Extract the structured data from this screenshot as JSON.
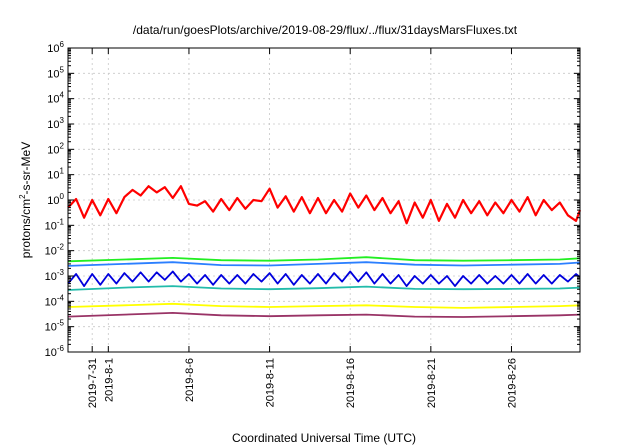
{
  "chart_data": {
    "type": "line",
    "title": "/data/run/goesPlots/archive/2019-08-29/flux/../flux/31daysMarsFluxes.txt",
    "xlabel": "Coordinated Universal Time (UTC)",
    "ylabel": {
      "main": "protons/cm",
      "sup": "2",
      "rest": "-s-sr-MeV"
    },
    "y_scale": "log",
    "ylim": [
      1e-06,
      1000000.0
    ],
    "y_ticks": [
      {
        "exp": "-6"
      },
      {
        "exp": "-5"
      },
      {
        "exp": "-4"
      },
      {
        "exp": "-3"
      },
      {
        "exp": "-2"
      },
      {
        "exp": "-1"
      },
      {
        "exp": "0"
      },
      {
        "exp": "1"
      },
      {
        "exp": "2"
      },
      {
        "exp": "3"
      },
      {
        "exp": "4"
      },
      {
        "exp": "5"
      },
      {
        "exp": "6"
      }
    ],
    "y_tick_base": "10",
    "xlim": [
      "2019-07-29T12:00",
      "2019-08-30T06:00"
    ],
    "x_ticks": [
      {
        "date": "2019-07-31",
        "label": "2019-7-31"
      },
      {
        "date": "2019-08-01",
        "label": "2019-8-1"
      },
      {
        "date": "2019-08-06",
        "label": "2019-8-6"
      },
      {
        "date": "2019-08-11",
        "label": "2019-8-11"
      },
      {
        "date": "2019-08-16",
        "label": "2019-8-16"
      },
      {
        "date": "2019-08-21",
        "label": "2019-8-21"
      },
      {
        "date": "2019-08-26",
        "label": "2019-8-26"
      }
    ],
    "grid": true,
    "series": [
      {
        "color": "#ff0000",
        "x": [
          "2019-07-29T12:00",
          "2019-07-30T00:00",
          "2019-07-30T12:00",
          "2019-07-31T00:00",
          "2019-07-31T12:00",
          "2019-08-01T00:00",
          "2019-08-01T12:00",
          "2019-08-02T00:00",
          "2019-08-02T12:00",
          "2019-08-03T00:00",
          "2019-08-03T12:00",
          "2019-08-04T00:00",
          "2019-08-04T12:00",
          "2019-08-05T00:00",
          "2019-08-05T12:00",
          "2019-08-06T00:00",
          "2019-08-06T12:00",
          "2019-08-07T00:00",
          "2019-08-07T12:00",
          "2019-08-08T00:00",
          "2019-08-08T12:00",
          "2019-08-09T00:00",
          "2019-08-09T12:00",
          "2019-08-10T00:00",
          "2019-08-10T12:00",
          "2019-08-11T00:00",
          "2019-08-11T12:00",
          "2019-08-12T00:00",
          "2019-08-12T12:00",
          "2019-08-13T00:00",
          "2019-08-13T12:00",
          "2019-08-14T00:00",
          "2019-08-14T12:00",
          "2019-08-15T00:00",
          "2019-08-15T12:00",
          "2019-08-16T00:00",
          "2019-08-16T12:00",
          "2019-08-17T00:00",
          "2019-08-17T12:00",
          "2019-08-18T00:00",
          "2019-08-18T12:00",
          "2019-08-19T00:00",
          "2019-08-19T12:00",
          "2019-08-20T00:00",
          "2019-08-20T12:00",
          "2019-08-21T00:00",
          "2019-08-21T12:00",
          "2019-08-22T00:00",
          "2019-08-22T12:00",
          "2019-08-23T00:00",
          "2019-08-23T12:00",
          "2019-08-24T00:00",
          "2019-08-24T12:00",
          "2019-08-25T00:00",
          "2019-08-25T12:00",
          "2019-08-26T00:00",
          "2019-08-26T12:00",
          "2019-08-27T00:00",
          "2019-08-27T12:00",
          "2019-08-28T00:00",
          "2019-08-28T12:00",
          "2019-08-29T00:00",
          "2019-08-29T12:00",
          "2019-08-30T00:00",
          "2019-08-30T06:00"
        ],
        "y": [
          0.5,
          1.1,
          0.2,
          1.0,
          0.25,
          1.1,
          0.3,
          1.3,
          2.5,
          1.5,
          3.5,
          2.0,
          3.2,
          1.2,
          3.5,
          0.7,
          0.6,
          0.9,
          0.35,
          1.1,
          0.4,
          1.2,
          0.45,
          1.0,
          0.9,
          2.8,
          0.5,
          1.4,
          0.35,
          1.3,
          0.3,
          1.2,
          0.3,
          1.0,
          0.35,
          1.8,
          0.5,
          1.5,
          0.4,
          1.2,
          0.3,
          0.9,
          0.12,
          0.8,
          0.2,
          1.0,
          0.15,
          0.7,
          0.2,
          1.0,
          0.3,
          0.9,
          0.25,
          0.8,
          0.3,
          1.0,
          0.35,
          1.3,
          0.25,
          1.0,
          0.4,
          0.8,
          0.25,
          0.15,
          0.4
        ]
      },
      {
        "color": "#22ee22",
        "x": [
          "2019-07-29T12:00",
          "2019-08-02T00:00",
          "2019-08-05T00:00",
          "2019-08-08T00:00",
          "2019-08-11T00:00",
          "2019-08-14T00:00",
          "2019-08-17T00:00",
          "2019-08-20T00:00",
          "2019-08-23T00:00",
          "2019-08-26T00:00",
          "2019-08-29T00:00",
          "2019-08-30T06:00"
        ],
        "y": [
          0.0038,
          0.0045,
          0.0052,
          0.0042,
          0.004,
          0.0045,
          0.0055,
          0.0042,
          0.004,
          0.0042,
          0.0045,
          0.005
        ]
      },
      {
        "color": "#2b7fff",
        "x": [
          "2019-07-29T12:00",
          "2019-08-02T00:00",
          "2019-08-05T00:00",
          "2019-08-08T00:00",
          "2019-08-11T00:00",
          "2019-08-14T00:00",
          "2019-08-17T00:00",
          "2019-08-20T00:00",
          "2019-08-23T00:00",
          "2019-08-26T00:00",
          "2019-08-29T00:00",
          "2019-08-30T06:00"
        ],
        "y": [
          0.0025,
          0.003,
          0.0035,
          0.0027,
          0.0026,
          0.003,
          0.0035,
          0.0028,
          0.0026,
          0.0028,
          0.003,
          0.0034
        ]
      },
      {
        "color": "#0000dd",
        "x": [
          "2019-07-29T12:00",
          "2019-07-30T00:00",
          "2019-07-30T12:00",
          "2019-07-31T00:00",
          "2019-07-31T12:00",
          "2019-08-01T00:00",
          "2019-08-01T12:00",
          "2019-08-02T00:00",
          "2019-08-02T12:00",
          "2019-08-03T00:00",
          "2019-08-03T12:00",
          "2019-08-04T00:00",
          "2019-08-04T12:00",
          "2019-08-05T00:00",
          "2019-08-05T12:00",
          "2019-08-06T00:00",
          "2019-08-06T12:00",
          "2019-08-07T00:00",
          "2019-08-07T12:00",
          "2019-08-08T00:00",
          "2019-08-08T12:00",
          "2019-08-09T00:00",
          "2019-08-09T12:00",
          "2019-08-10T00:00",
          "2019-08-10T12:00",
          "2019-08-11T00:00",
          "2019-08-11T12:00",
          "2019-08-12T00:00",
          "2019-08-12T12:00",
          "2019-08-13T00:00",
          "2019-08-13T12:00",
          "2019-08-14T00:00",
          "2019-08-14T12:00",
          "2019-08-15T00:00",
          "2019-08-15T12:00",
          "2019-08-16T00:00",
          "2019-08-16T12:00",
          "2019-08-17T00:00",
          "2019-08-17T12:00",
          "2019-08-18T00:00",
          "2019-08-18T12:00",
          "2019-08-19T00:00",
          "2019-08-19T12:00",
          "2019-08-20T00:00",
          "2019-08-20T12:00",
          "2019-08-21T00:00",
          "2019-08-21T12:00",
          "2019-08-22T00:00",
          "2019-08-22T12:00",
          "2019-08-23T00:00",
          "2019-08-23T12:00",
          "2019-08-24T00:00",
          "2019-08-24T12:00",
          "2019-08-25T00:00",
          "2019-08-25T12:00",
          "2019-08-26T00:00",
          "2019-08-26T12:00",
          "2019-08-27T00:00",
          "2019-08-27T12:00",
          "2019-08-28T00:00",
          "2019-08-28T12:00",
          "2019-08-29T00:00",
          "2019-08-29T12:00",
          "2019-08-30T00:00",
          "2019-08-30T06:00"
        ],
        "y": [
          0.0005,
          0.0012,
          0.0004,
          0.0012,
          0.00045,
          0.0012,
          0.0005,
          0.0013,
          0.0006,
          0.0014,
          0.0006,
          0.0014,
          0.0007,
          0.0015,
          0.0006,
          0.0012,
          0.0005,
          0.0011,
          0.00045,
          0.0011,
          0.0005,
          0.0011,
          0.0005,
          0.0012,
          0.0006,
          0.0013,
          0.0005,
          0.0012,
          0.00045,
          0.0011,
          0.0005,
          0.0012,
          0.0005,
          0.0013,
          0.0006,
          0.0015,
          0.0006,
          0.0014,
          0.0005,
          0.0012,
          0.0005,
          0.0011,
          0.0004,
          0.001,
          0.0005,
          0.0011,
          0.0005,
          0.001,
          0.0004,
          0.001,
          0.0005,
          0.0011,
          0.0005,
          0.001,
          0.0005,
          0.0011,
          0.0005,
          0.0012,
          0.0005,
          0.0011,
          0.0005,
          0.0011,
          0.0006,
          0.0012,
          0.0009
        ]
      },
      {
        "color": "#22bbaa",
        "x": [
          "2019-07-29T12:00",
          "2019-08-02T00:00",
          "2019-08-05T00:00",
          "2019-08-08T00:00",
          "2019-08-11T00:00",
          "2019-08-14T00:00",
          "2019-08-17T00:00",
          "2019-08-20T00:00",
          "2019-08-23T00:00",
          "2019-08-26T00:00",
          "2019-08-29T00:00",
          "2019-08-30T06:00"
        ],
        "y": [
          0.00028,
          0.00035,
          0.0004,
          0.00032,
          0.0003,
          0.00033,
          0.00038,
          0.00031,
          0.0003,
          0.00031,
          0.00032,
          0.00035
        ]
      },
      {
        "color": "#ffff00",
        "x": [
          "2019-07-29T12:00",
          "2019-08-02T00:00",
          "2019-08-05T00:00",
          "2019-08-08T00:00",
          "2019-08-11T00:00",
          "2019-08-14T00:00",
          "2019-08-17T00:00",
          "2019-08-20T00:00",
          "2019-08-23T00:00",
          "2019-08-26T00:00",
          "2019-08-29T00:00",
          "2019-08-30T06:00"
        ],
        "y": [
          6e-05,
          7e-05,
          8e-05,
          6.5e-05,
          6e-05,
          6.5e-05,
          7e-05,
          6e-05,
          5.5e-05,
          6e-05,
          6.5e-05,
          7e-05
        ]
      },
      {
        "color": "#993366",
        "x": [
          "2019-07-29T12:00",
          "2019-08-02T00:00",
          "2019-08-05T00:00",
          "2019-08-08T00:00",
          "2019-08-11T00:00",
          "2019-08-14T00:00",
          "2019-08-17T00:00",
          "2019-08-20T00:00",
          "2019-08-23T00:00",
          "2019-08-26T00:00",
          "2019-08-29T00:00",
          "2019-08-30T06:00"
        ],
        "y": [
          2.5e-05,
          3e-05,
          3.5e-05,
          2.8e-05,
          2.6e-05,
          2.8e-05,
          3e-05,
          2.5e-05,
          2.4e-05,
          2.6e-05,
          2.8e-05,
          3e-05
        ]
      }
    ]
  }
}
